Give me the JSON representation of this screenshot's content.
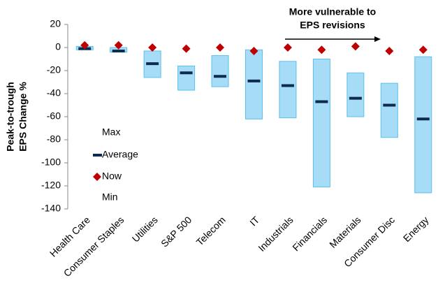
{
  "chart_data": {
    "type": "floating-range",
    "y_label": [
      "Peak-to-trough",
      "EPS Change %"
    ],
    "annotation": [
      "More vulnerable to",
      "EPS revisions"
    ],
    "categories": [
      "Health Care",
      "Consumer Staples",
      "Utilities",
      "S&P 500",
      "Telecom",
      "IT",
      "Industrials",
      "Financials",
      "Materials",
      "Consumer Disc",
      "Energy"
    ],
    "series": [
      {
        "name": "Max",
        "color": "#a6dcf5",
        "values": [
          1,
          0,
          -3,
          -16,
          -7,
          -2,
          -12,
          -10,
          -22,
          -31,
          -8
        ]
      },
      {
        "name": "Average",
        "color": "#0d2b4f",
        "values": [
          -1,
          -3,
          -14,
          -22,
          -25,
          -29,
          -33,
          -47,
          -44,
          -50,
          -62
        ]
      },
      {
        "name": "Now",
        "color": "#c00000",
        "values": [
          2,
          2,
          0,
          -1,
          0,
          -3,
          0,
          -2,
          1,
          -3,
          -2
        ]
      },
      {
        "name": "Min",
        "color": "#a6dcf5",
        "values": [
          -2,
          -4,
          -26,
          -37,
          -34,
          -62,
          -61,
          -121,
          -60,
          -78,
          -126
        ]
      }
    ],
    "ylim": [
      -140,
      20
    ],
    "yticks": [
      -140,
      -120,
      -100,
      -80,
      -60,
      -40,
      -20,
      0,
      20
    ]
  }
}
